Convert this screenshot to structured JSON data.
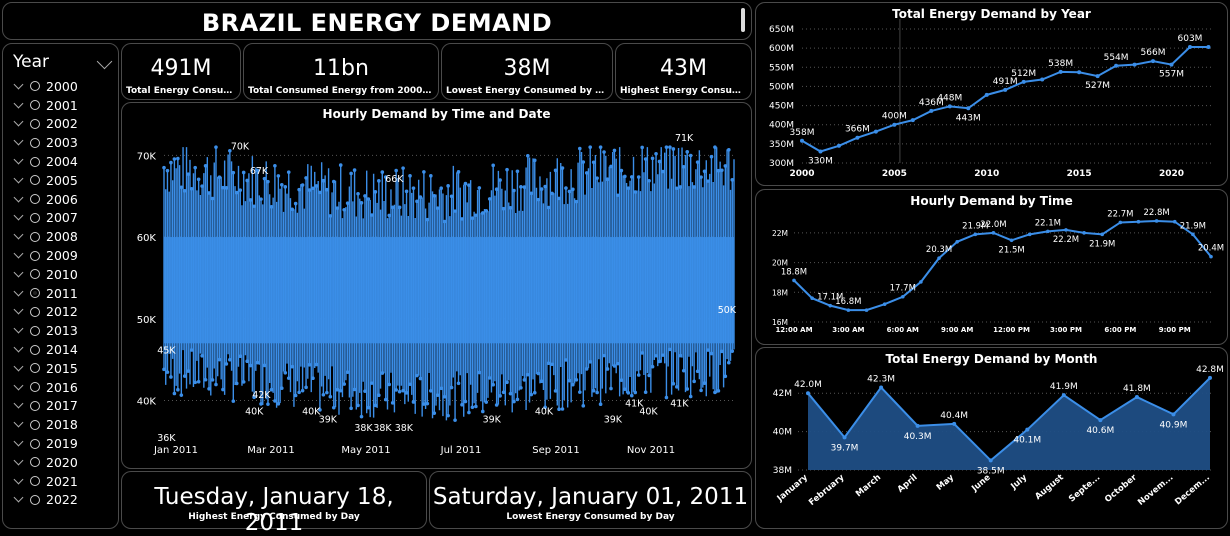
{
  "header": {
    "title": "BRAZIL ENERGY DEMAND"
  },
  "slicer": {
    "title": "Year",
    "items": [
      "2000",
      "2001",
      "2002",
      "2003",
      "2004",
      "2005",
      "2006",
      "2007",
      "2008",
      "2009",
      "2010",
      "2011",
      "2012",
      "2013",
      "2014",
      "2015",
      "2016",
      "2017",
      "2018",
      "2019",
      "2020",
      "2021",
      "2022"
    ],
    "selected": "2011"
  },
  "kpis": [
    {
      "value": "491M",
      "label": "Total Energy Consumed"
    },
    {
      "value": "11bn",
      "label": "Total Consumed Energy from 2000 - 2022"
    },
    {
      "value": "38M",
      "label": "Lowest Energy Consumed by Month"
    },
    {
      "value": "43M",
      "label": "Highest Energy Consumed..."
    }
  ],
  "date_cards": [
    {
      "value": "Tuesday, January 18, 2011",
      "label": "Highest Energy Consumed by Day"
    },
    {
      "value": "Saturday, January 01, 2011",
      "label": "Lowest Energy Consumed by Day"
    }
  ],
  "colors": {
    "accent": "#3b8ee8",
    "area_fill": "#1f4e85",
    "border": "#4a4a4a"
  },
  "chart_data": [
    {
      "type": "line",
      "title": "Hourly Demand by Time and Date",
      "xticks": [
        "Jan 2011",
        "Mar 2011",
        "May 2011",
        "Jul 2011",
        "Sep 2011",
        "Nov 2011"
      ],
      "yticks": [
        "40K",
        "50K",
        "60K",
        "70K"
      ],
      "ylim": [
        37000,
        72000
      ],
      "range": {
        "min": 36000,
        "max": 71000
      },
      "labels": [
        {
          "text": "36K",
          "m": 0.05,
          "v": 36000
        },
        {
          "text": "45K",
          "m": 0.05,
          "v": 45000
        },
        {
          "text": "70K",
          "m": 1.6,
          "v": 70000
        },
        {
          "text": "67K",
          "m": 2.0,
          "v": 67000
        },
        {
          "text": "40K",
          "m": 1.9,
          "v": 40000
        },
        {
          "text": "42K",
          "m": 2.05,
          "v": 42000
        },
        {
          "text": "40K",
          "m": 3.1,
          "v": 40000
        },
        {
          "text": "39K",
          "m": 3.45,
          "v": 39000
        },
        {
          "text": "38K",
          "m": 4.2,
          "v": 38000
        },
        {
          "text": "38K",
          "m": 4.6,
          "v": 38000
        },
        {
          "text": "38K",
          "m": 5.05,
          "v": 38000
        },
        {
          "text": "66K",
          "m": 4.85,
          "v": 66000
        },
        {
          "text": "39K",
          "m": 6.9,
          "v": 39000
        },
        {
          "text": "40K",
          "m": 8.0,
          "v": 40000
        },
        {
          "text": "39K",
          "m": 9.45,
          "v": 39000
        },
        {
          "text": "41K",
          "m": 9.9,
          "v": 41000
        },
        {
          "text": "40K",
          "m": 10.2,
          "v": 40000
        },
        {
          "text": "41K",
          "m": 10.85,
          "v": 41000
        },
        {
          "text": "71K",
          "m": 10.95,
          "v": 71000
        },
        {
          "text": "50K",
          "m": 11.85,
          "v": 50000
        }
      ]
    },
    {
      "type": "line",
      "title": "Total Energy Demand by Year",
      "x": [
        2000,
        2001,
        2002,
        2003,
        2004,
        2005,
        2006,
        2007,
        2008,
        2009,
        2010,
        2011,
        2012,
        2013,
        2014,
        2015,
        2016,
        2017,
        2018,
        2019,
        2020,
        2021,
        2022
      ],
      "values": [
        358,
        330,
        345,
        366,
        382,
        400,
        412,
        436,
        448,
        443,
        478,
        491,
        512,
        518,
        538,
        537,
        527,
        554,
        557,
        566,
        557,
        603,
        603
      ],
      "labels": [
        "358M",
        "330M",
        "",
        "366M",
        "",
        "400M",
        "",
        "436M",
        "448M",
        "443M",
        "",
        "491M",
        "512M",
        "",
        "538M",
        "",
        "527M",
        "554M",
        "",
        "566M",
        "557M",
        "603M",
        ""
      ],
      "xticks": [
        2000,
        2005,
        2010,
        2015,
        2020
      ],
      "yticks": [
        "300M",
        "350M",
        "400M",
        "450M",
        "500M",
        "550M",
        "600M",
        "650M"
      ],
      "ylim": [
        300,
        650
      ]
    },
    {
      "type": "line",
      "title": "Hourly Demand by Time",
      "x": [
        "12:00 AM",
        "1:00 AM",
        "2:00 AM",
        "3:00 AM",
        "4:00 AM",
        "5:00 AM",
        "6:00 AM",
        "7:00 AM",
        "8:00 AM",
        "9:00 AM",
        "10:00 AM",
        "11:00 AM",
        "12:00 PM",
        "1:00 PM",
        "2:00 PM",
        "3:00 PM",
        "4:00 PM",
        "5:00 PM",
        "6:00 PM",
        "7:00 PM",
        "8:00 PM",
        "9:00 PM",
        "10:00 PM",
        "11:00 PM"
      ],
      "values": [
        18.8,
        17.6,
        17.1,
        16.8,
        16.8,
        17.2,
        17.7,
        18.7,
        20.3,
        21.4,
        21.9,
        22.0,
        21.5,
        21.9,
        22.1,
        22.2,
        22.0,
        21.9,
        22.7,
        22.75,
        22.8,
        22.75,
        21.9,
        20.4
      ],
      "labels": [
        "18.8M",
        "",
        "17.1M",
        "16.8M",
        "",
        "",
        "17.7M",
        "",
        "20.3M",
        "",
        "21.9M",
        "22.0M",
        "21.5M",
        "",
        "22.1M",
        "22.2M",
        "",
        "21.9M",
        "22.7M",
        "",
        "22.8M",
        "",
        "21.9M",
        "20.4M"
      ],
      "xticks": [
        "12:00 AM",
        "3:00 AM",
        "6:00 AM",
        "9:00 AM",
        "12:00 PM",
        "3:00 PM",
        "6:00 PM",
        "9:00 PM"
      ],
      "yticks": [
        "16M",
        "18M",
        "20M",
        "22M"
      ],
      "ylim": [
        16,
        23
      ]
    },
    {
      "type": "area",
      "title": "Total Energy Demand by Month",
      "categories": [
        "January",
        "February",
        "March",
        "April",
        "May",
        "June",
        "July",
        "August",
        "Septe...",
        "October",
        "Novem...",
        "Decem..."
      ],
      "values": [
        42.0,
        39.7,
        42.3,
        40.3,
        40.4,
        38.5,
        40.1,
        41.9,
        40.6,
        41.8,
        40.9,
        42.8
      ],
      "labels": [
        "42.0M",
        "39.7M",
        "42.3M",
        "40.3M",
        "40.4M",
        "38.5M",
        "40.1M",
        "41.9M",
        "40.6M",
        "41.8M",
        "40.9M",
        "42.8M"
      ],
      "yticks": [
        "38M",
        "40M",
        "42M"
      ],
      "ylim": [
        38,
        43
      ]
    }
  ]
}
